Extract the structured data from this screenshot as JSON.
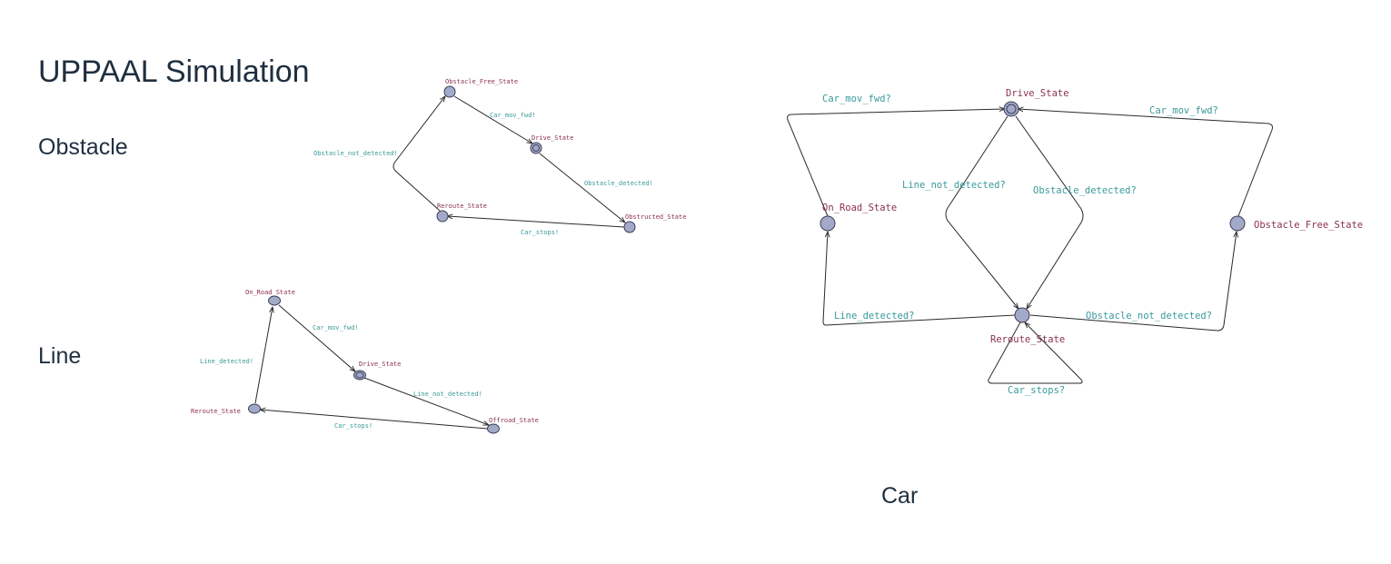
{
  "slide": {
    "title": "UPPAAL Simulation"
  },
  "sections": {
    "obstacle": "Obstacle",
    "line": "Line",
    "car": "Car"
  },
  "obstacle_automaton": {
    "locations": {
      "obstacle_free": "Obstacle_Free_State",
      "drive": "Drive_State",
      "obstructed": "Obstructed_State",
      "reroute": "Reroute_State"
    },
    "edges": {
      "car_mov_fwd": "Car_mov_fwd!",
      "obstacle_detected": "Obstacle_detected!",
      "car_stops": "Car_stops!",
      "obstacle_not_detected": "Obstacle_not_detected!"
    }
  },
  "line_automaton": {
    "locations": {
      "on_road": "On_Road_State",
      "drive": "Drive_State",
      "offroad": "Offroad_State",
      "reroute": "Reroute_State"
    },
    "edges": {
      "car_mov_fwd": "Car_mov_fwd!",
      "line_not_detected": "Line_not_detected!",
      "car_stops": "Car_stops!",
      "line_detected": "Line_detected!"
    }
  },
  "car_automaton": {
    "locations": {
      "drive": "Drive_State",
      "on_road": "On_Road_State",
      "obstacle_free": "Obstacle_Free_State",
      "reroute": "Reroute_State"
    },
    "edges": {
      "car_mov_fwd_left": "Car_mov_fwd?",
      "car_mov_fwd_right": "Car_mov_fwd?",
      "line_not_detected": "Line_not_detected?",
      "obstacle_detected": "Obstacle_detected?",
      "line_detected": "Line_detected?",
      "obstacle_not_detected": "Obstacle_not_detected?",
      "car_stops": "Car_stops?"
    }
  }
}
